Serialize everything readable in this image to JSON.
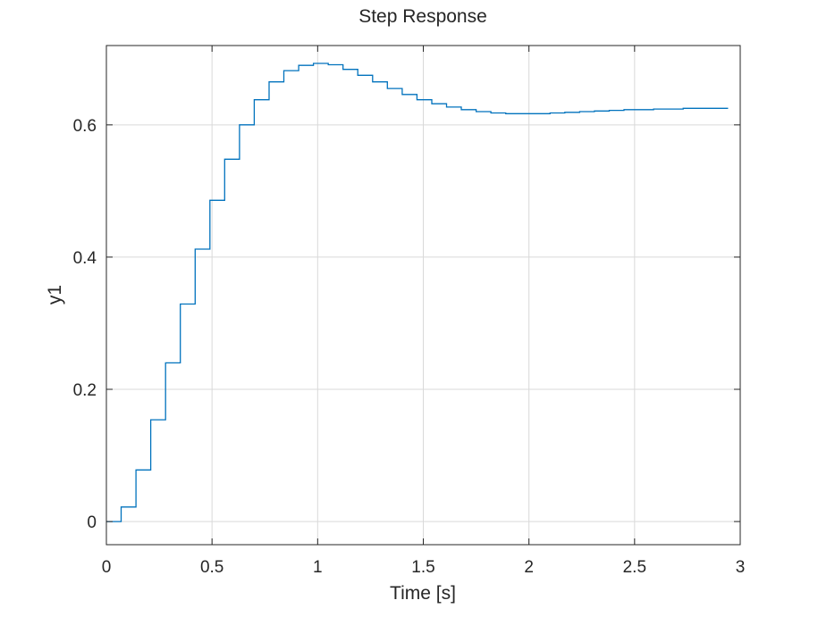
{
  "chart_data": {
    "type": "line",
    "style": "stairs",
    "title": "Step Response",
    "xlabel": "Time [s]",
    "ylabel": "y1",
    "xlim": [
      0,
      3
    ],
    "ylim": [
      -0.035,
      0.72
    ],
    "grid": true,
    "xticks": [
      0,
      0.5,
      1,
      1.5,
      2,
      2.5,
      3
    ],
    "xtick_labels": [
      "0",
      "0.5",
      "1",
      "1.5",
      "2",
      "2.5",
      "3"
    ],
    "yticks": [
      0,
      0.2,
      0.4,
      0.6
    ],
    "ytick_labels": [
      "0",
      "0.2",
      "0.4",
      "0.6"
    ],
    "series": [
      {
        "color": "#0072bd",
        "x": [
          0,
          0.07,
          0.14,
          0.21,
          0.28,
          0.35,
          0.42,
          0.49,
          0.56,
          0.63,
          0.7,
          0.77,
          0.84,
          0.91,
          0.98,
          1.05,
          1.12,
          1.19,
          1.26,
          1.33,
          1.4,
          1.47,
          1.54,
          1.61,
          1.68,
          1.75,
          1.82,
          1.89,
          1.96,
          2.03,
          2.1,
          2.17,
          2.24,
          2.31,
          2.38,
          2.45,
          2.52,
          2.59,
          2.66,
          2.73,
          2.8,
          2.87,
          2.94
        ],
        "y": [
          0,
          0.022,
          0.078,
          0.154,
          0.24,
          0.329,
          0.412,
          0.486,
          0.548,
          0.6,
          0.638,
          0.665,
          0.682,
          0.69,
          0.693,
          0.691,
          0.684,
          0.675,
          0.665,
          0.655,
          0.646,
          0.638,
          0.632,
          0.627,
          0.623,
          0.62,
          0.618,
          0.617,
          0.617,
          0.617,
          0.618,
          0.619,
          0.62,
          0.621,
          0.622,
          0.623,
          0.623,
          0.624,
          0.624,
          0.625,
          0.625,
          0.625,
          0.626
        ]
      }
    ]
  }
}
